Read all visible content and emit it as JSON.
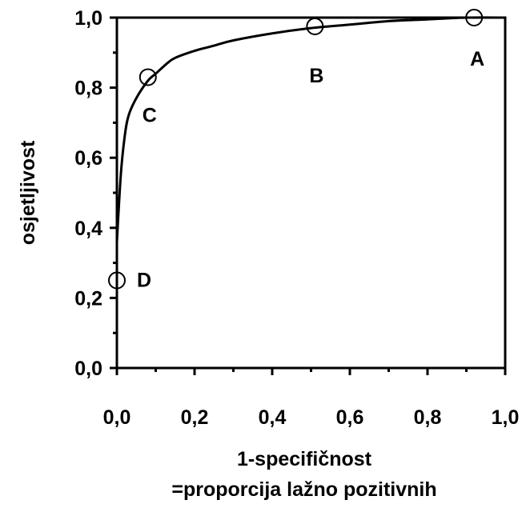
{
  "chart_data": {
    "type": "line",
    "title": "",
    "xlabel": "1-specifičnost",
    "xlabel2": "=proporcija lažno pozitivnih",
    "ylabel": "osjetljivost",
    "xlim": [
      0,
      1
    ],
    "ylim": [
      0,
      1
    ],
    "x_ticks": [
      "0,0",
      "0,2",
      "0,4",
      "0,6",
      "0,8",
      "1,0"
    ],
    "y_ticks": [
      "0,0",
      "0,2",
      "0,4",
      "0,6",
      "0,8",
      "1,0"
    ],
    "grid": false,
    "series": [
      {
        "x": [
          0.0,
          0.01,
          0.02,
          0.03,
          0.05,
          0.08,
          0.1,
          0.13,
          0.15,
          0.2,
          0.25,
          0.3,
          0.4,
          0.5,
          0.6,
          0.7,
          0.8,
          0.9,
          1.0
        ],
        "y": [
          0.36,
          0.55,
          0.66,
          0.72,
          0.77,
          0.82,
          0.84,
          0.87,
          0.885,
          0.905,
          0.92,
          0.935,
          0.955,
          0.97,
          0.98,
          0.99,
          0.995,
          1.0,
          1.0
        ]
      }
    ],
    "points": [
      {
        "label": "A",
        "x": 0.92,
        "y": 1.0
      },
      {
        "label": "B",
        "x": 0.51,
        "y": 0.975
      },
      {
        "label": "C",
        "x": 0.08,
        "y": 0.83
      },
      {
        "label": "D",
        "x": 0.0,
        "y": 0.25
      }
    ]
  }
}
